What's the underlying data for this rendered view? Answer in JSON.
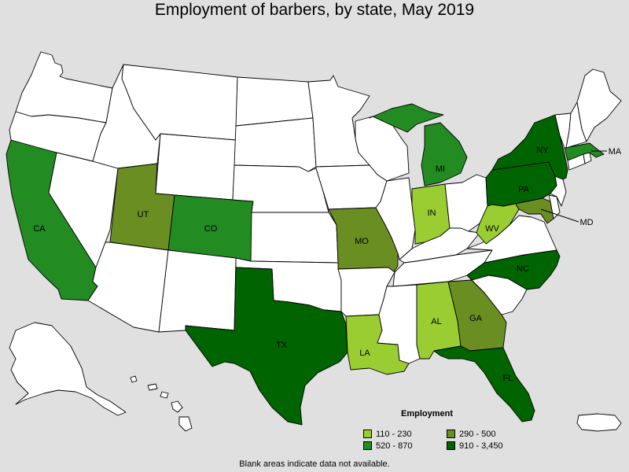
{
  "title": "Employment of barbers, by state, May 2019",
  "legend": {
    "title": "Employment",
    "items": [
      {
        "label": "110 - 230",
        "color": "#9acd32"
      },
      {
        "label": "290 - 500",
        "color": "#6b8e23"
      },
      {
        "label": "520 - 870",
        "color": "#228b22"
      },
      {
        "label": "910 - 3,450",
        "color": "#006400"
      }
    ]
  },
  "note": "Blank areas indicate data not available.",
  "colors": {
    "no_data": "#ffffff",
    "background": "#e0e0e0",
    "border": "#000000"
  },
  "states": {
    "WA": "none",
    "OR": "none",
    "CA": "520 - 870",
    "NV": "none",
    "ID": "none",
    "MT": "none",
    "WY": "none",
    "UT": "290 - 500",
    "CO": "520 - 870",
    "AZ": "none",
    "NM": "none",
    "ND": "none",
    "SD": "none",
    "NE": "none",
    "KS": "none",
    "OK": "none",
    "TX": "910 - 3,450",
    "MN": "none",
    "IA": "none",
    "MO": "290 - 500",
    "AR": "none",
    "LA": "110 - 230",
    "WI": "none",
    "IL": "none",
    "MI": "520 - 870",
    "IN": "110 - 230",
    "OH": "none",
    "KY": "none",
    "TN": "none",
    "MS": "none",
    "AL": "110 - 230",
    "GA": "290 - 500",
    "FL": "910 - 3,450",
    "SC": "none",
    "NC": "910 - 3,450",
    "VA": "none",
    "WV": "110 - 230",
    "MD": "290 - 500",
    "DE": "none",
    "NJ": "none",
    "PA": "910 - 3,450",
    "NY": "910 - 3,450",
    "CT": "none",
    "RI": "none",
    "MA": "520 - 870",
    "VT": "none",
    "NH": "none",
    "ME": "none",
    "AK": "none",
    "HI": "none",
    "PR": "none"
  },
  "labels": [
    "CA",
    "UT",
    "CO",
    "MO",
    "TX",
    "LA",
    "MI",
    "IN",
    "AL",
    "GA",
    "FL",
    "NC",
    "WV",
    "PA",
    "NY",
    "MD",
    "MA"
  ]
}
